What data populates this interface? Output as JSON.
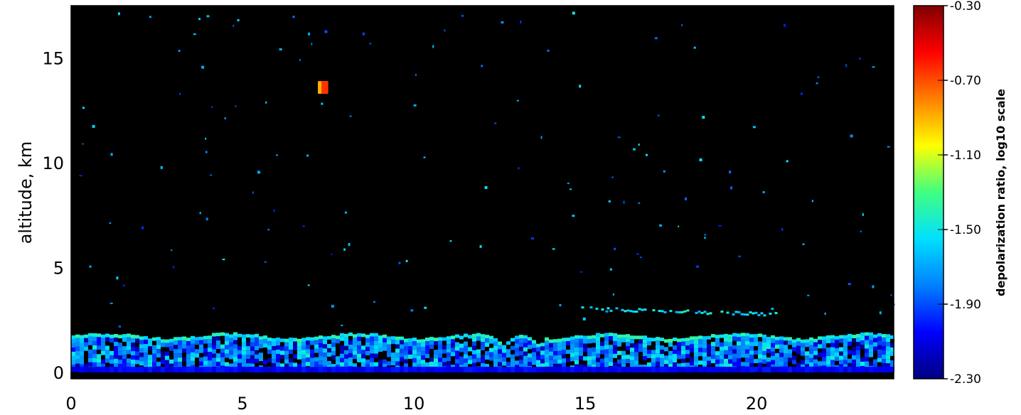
{
  "chart_data": {
    "type": "heatmap",
    "ylabel": "altitude, km",
    "x_ticks": [
      0,
      5,
      10,
      15,
      20
    ],
    "y_ticks": [
      0,
      5,
      10,
      15
    ],
    "xlim": [
      0,
      24
    ],
    "ylim": [
      -0.3,
      17.5
    ],
    "colorbar": {
      "label": "depolarization ratio, log10 scale",
      "scale": "log10",
      "range": [
        -2.3,
        -0.3
      ],
      "ticks": [
        "-0.30",
        "-0.70",
        "-1.10",
        "-1.50",
        "-1.90",
        "-2.30"
      ],
      "tick_values": [
        -0.3,
        -0.7,
        -1.1,
        -1.5,
        -1.9,
        -2.3
      ],
      "colormap": [
        "#000080",
        "#0000ff",
        "#0080ff",
        "#00e0ff",
        "#40ff80",
        "#ffff00",
        "#ff8000",
        "#ff0000",
        "#800000"
      ]
    },
    "background_color": "#000000",
    "features": [
      {
        "kind": "boundary-layer",
        "x_range": [
          0,
          24
        ],
        "alt_range": [
          0,
          1.9
        ],
        "value": -1.75
      },
      {
        "kind": "aerosol-layer",
        "x_range": [
          14.8,
          20.6
        ],
        "alt_range": [
          2.8,
          3.2
        ],
        "value": -1.55
      },
      {
        "kind": "cloud-patch",
        "x_range": [
          7.2,
          7.5
        ],
        "alt_range": [
          13.3,
          13.9
        ],
        "value": -0.75
      }
    ]
  }
}
